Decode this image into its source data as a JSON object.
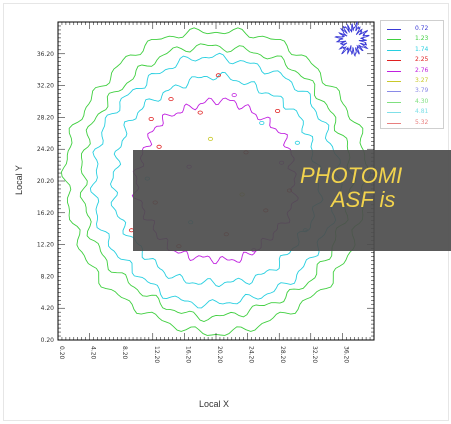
{
  "chart_data": {
    "type": "contour",
    "xlabel": "Local X",
    "ylabel": "Local Y",
    "xlim": [
      0.2,
      40.2
    ],
    "ylim": [
      0.2,
      40.2
    ],
    "x_ticks": [
      "0.20",
      "4.20",
      "8.20",
      "12.20",
      "16.20",
      "20.20",
      "24.20",
      "28.20",
      "32.20",
      "36.20"
    ],
    "y_ticks": [
      "0.20",
      "4.20",
      "8.20",
      "12.20",
      "16.20",
      "20.20",
      "24.20",
      "28.20",
      "32.20",
      "36.20"
    ],
    "legend_placement": "right",
    "levels": [
      {
        "label": "0.72",
        "color": "#3a3ad6"
      },
      {
        "label": "1.23",
        "color": "#3fcf3f"
      },
      {
        "label": "1.74",
        "color": "#27cfe0"
      },
      {
        "label": "2.25",
        "color": "#e02020"
      },
      {
        "label": "2.76",
        "color": "#c020e0"
      },
      {
        "label": "3.27",
        "color": "#c9c92a"
      },
      {
        "label": "3.79",
        "color": "#8a8ae8"
      },
      {
        "label": "4.30",
        "color": "#7fe07f"
      },
      {
        "label": "4.81",
        "color": "#7fe0e8"
      },
      {
        "label": "5.32",
        "color": "#e87f7f"
      }
    ],
    "contours": [
      {
        "level": 1,
        "center": [
          20.2,
          20.2
        ],
        "radius": 19.0
      },
      {
        "level": 1,
        "center": [
          20.2,
          20.2
        ],
        "radius": 17.0
      },
      {
        "level": 2,
        "center": [
          20.2,
          20.2
        ],
        "radius": 15.5
      },
      {
        "level": 2,
        "center": [
          20.2,
          20.2
        ],
        "radius": 13.0
      },
      {
        "level": 4,
        "center": [
          20.2,
          20.2
        ],
        "radius": 10.0
      },
      {
        "level": 0,
        "center": [
          37.5,
          38.0
        ],
        "radius": 1.5
      }
    ]
  },
  "overlay": {
    "line1": "PHOTOMI",
    "line2": "ASF is"
  }
}
